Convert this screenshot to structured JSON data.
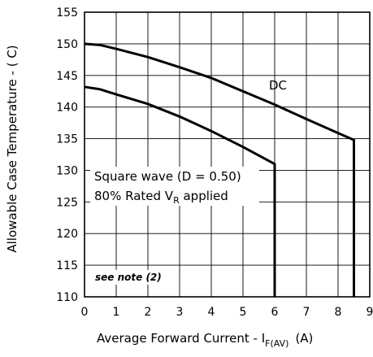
{
  "chart_data": {
    "type": "line",
    "title": "",
    "xlabel": {
      "main": "Average Forward Current - I",
      "sub": "F(AV)",
      "unit": "(A)"
    },
    "ylabel": "Allowable Case Temperature - ( C)",
    "xlim": [
      0,
      9
    ],
    "ylim": [
      110,
      155
    ],
    "x_ticks": [
      0,
      1,
      2,
      3,
      4,
      5,
      6,
      7,
      8,
      9
    ],
    "y_ticks": [
      110,
      115,
      120,
      125,
      130,
      135,
      140,
      145,
      150,
      155
    ],
    "grid": true,
    "series": [
      {
        "name": "DC",
        "x": [
          0,
          0.5,
          1,
          2,
          3,
          4,
          5,
          6,
          7,
          8,
          8.5,
          8.5
        ],
        "y": [
          150,
          149.8,
          149.2,
          147.9,
          146.3,
          144.6,
          142.5,
          140.4,
          138.1,
          135.9,
          134.8,
          110
        ]
      },
      {
        "name": "Square wave (D = 0.50)",
        "x": [
          0,
          0.5,
          1,
          2,
          3,
          4,
          5,
          6,
          6
        ],
        "y": [
          143.2,
          142.8,
          142.0,
          140.5,
          138.5,
          136.2,
          133.7,
          131.0,
          110
        ]
      }
    ],
    "annotations": {
      "dc_label": "DC",
      "square_wave_line1": "Square wave (D = 0.50)",
      "square_wave_line2_main": "80% Rated V",
      "square_wave_line2_sub": "R",
      "square_wave_line2_end": " applied",
      "note": "see note (2)"
    },
    "colors": {
      "background": "#ffffff",
      "grid": "#000000",
      "curves": "#000000"
    }
  }
}
